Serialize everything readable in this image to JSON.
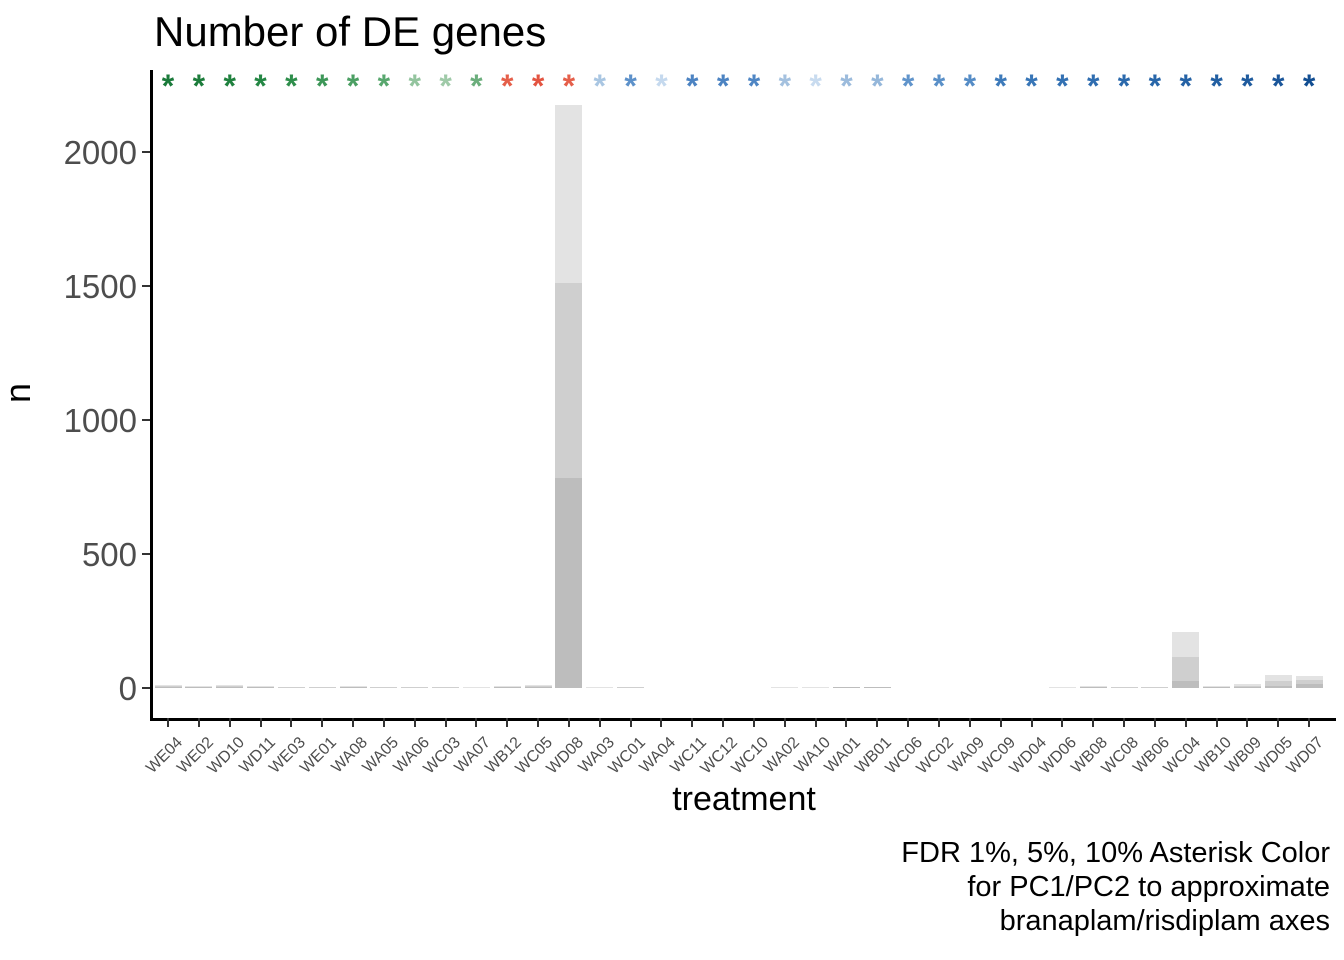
{
  "title": "Number of DE genes",
  "y_axis": {
    "label": "n"
  },
  "x_axis": {
    "label": "treatment"
  },
  "caption": {
    "lines": [
      "FDR 1%, 5%, 10% Asterisk Color",
      "for PC1/PC2 to approximate",
      "branaplam/risdiplam axes"
    ]
  },
  "colors": {
    "background": "#ffffff",
    "axis_line": "#000000",
    "tick_text": "#4d4d4d",
    "bar_fdr10": "#e3e3e3",
    "bar_fdr5": "#cfcfcf",
    "bar_fdr1": "#bdbdbd"
  },
  "chart_data": {
    "type": "bar",
    "stacking": "overlay",
    "title": "Number of DE genes",
    "xlabel": "treatment",
    "ylabel": "n",
    "ylim": [
      0,
      2280
    ],
    "yticks": [
      0,
      500,
      1000,
      1500,
      2000
    ],
    "grid": false,
    "legend_position": "none",
    "series_names": [
      "FDR 10%",
      "FDR 5%",
      "FDR 1%"
    ],
    "asterisk_glyph": "*",
    "treatments": [
      {
        "label": "WE04",
        "fdr10": 12,
        "fdr5": 8,
        "fdr1": 3,
        "asterisk_color": "#1a7a3a"
      },
      {
        "label": "WE02",
        "fdr10": 8,
        "fdr5": 5,
        "fdr1": 2,
        "asterisk_color": "#1c7c3b"
      },
      {
        "label": "WD10",
        "fdr10": 11,
        "fdr5": 7,
        "fdr1": 3,
        "asterisk_color": "#1f813e"
      },
      {
        "label": "WD11",
        "fdr10": 7,
        "fdr5": 4,
        "fdr1": 2,
        "asterisk_color": "#248744"
      },
      {
        "label": "WE03",
        "fdr10": 3,
        "fdr5": 1,
        "fdr1": 0,
        "asterisk_color": "#2e8e4b"
      },
      {
        "label": "WE01",
        "fdr10": 5,
        "fdr5": 2,
        "fdr1": 0,
        "asterisk_color": "#3d9758"
      },
      {
        "label": "WA08",
        "fdr10": 8,
        "fdr5": 4,
        "fdr1": 1,
        "asterisk_color": "#4b9f63"
      },
      {
        "label": "WA05",
        "fdr10": 4,
        "fdr5": 2,
        "fdr1": 0,
        "asterisk_color": "#58a76e"
      },
      {
        "label": "WA06",
        "fdr10": 2,
        "fdr5": 1,
        "fdr1": 0,
        "asterisk_color": "#93c49e"
      },
      {
        "label": "WC03",
        "fdr10": 2,
        "fdr5": 1,
        "fdr1": 0,
        "asterisk_color": "#9fcaa8"
      },
      {
        "label": "WA07",
        "fdr10": 1,
        "fdr5": 0,
        "fdr1": 0,
        "asterisk_color": "#6bae7c"
      },
      {
        "label": "WB12",
        "fdr10": 6,
        "fdr5": 3,
        "fdr1": 1,
        "asterisk_color": "#e55f4a"
      },
      {
        "label": "WC05",
        "fdr10": 12,
        "fdr5": 6,
        "fdr1": 2,
        "asterisk_color": "#e35441"
      },
      {
        "label": "WD08",
        "fdr10": 2175,
        "fdr5": 1510,
        "fdr1": 785,
        "asterisk_color": "#e55f4a"
      },
      {
        "label": "WA03",
        "fdr10": 1,
        "fdr5": 0,
        "fdr1": 0,
        "asterisk_color": "#a9c6e2"
      },
      {
        "label": "WC01",
        "fdr10": 3,
        "fdr5": 1,
        "fdr1": 0,
        "asterisk_color": "#5d91ca"
      },
      {
        "label": "WA04",
        "fdr10": 0,
        "fdr5": 0,
        "fdr1": 0,
        "asterisk_color": "#c5d9ee"
      },
      {
        "label": "WC11",
        "fdr10": 0,
        "fdr5": 0,
        "fdr1": 0,
        "asterisk_color": "#4c83c2"
      },
      {
        "label": "WC12",
        "fdr10": 0,
        "fdr5": 0,
        "fdr1": 0,
        "asterisk_color": "#4c83c2"
      },
      {
        "label": "WC10",
        "fdr10": 0,
        "fdr5": 0,
        "fdr1": 0,
        "asterisk_color": "#4f86c4"
      },
      {
        "label": "WA02",
        "fdr10": 1,
        "fdr5": 0,
        "fdr1": 0,
        "asterisk_color": "#a4c1df"
      },
      {
        "label": "WA10",
        "fdr10": 1,
        "fdr5": 0,
        "fdr1": 0,
        "asterisk_color": "#c8dbef"
      },
      {
        "label": "WA01",
        "fdr10": 5,
        "fdr5": 3,
        "fdr1": 1,
        "asterisk_color": "#9cbbdc"
      },
      {
        "label": "WB01",
        "fdr10": 5,
        "fdr5": 3,
        "fdr1": 1,
        "asterisk_color": "#95b7da"
      },
      {
        "label": "WC06",
        "fdr10": 0,
        "fdr5": 0,
        "fdr1": 0,
        "asterisk_color": "#6094cb"
      },
      {
        "label": "WC02",
        "fdr10": 0,
        "fdr5": 0,
        "fdr1": 0,
        "asterisk_color": "#5a90c8"
      },
      {
        "label": "WA09",
        "fdr10": 0,
        "fdr5": 0,
        "fdr1": 0,
        "asterisk_color": "#558cc6"
      },
      {
        "label": "WC09",
        "fdr10": 0,
        "fdr5": 0,
        "fdr1": 0,
        "asterisk_color": "#3d7aba"
      },
      {
        "label": "WD04",
        "fdr10": 0,
        "fdr5": 0,
        "fdr1": 0,
        "asterisk_color": "#3876b7"
      },
      {
        "label": "WD06",
        "fdr10": 1,
        "fdr5": 0,
        "fdr1": 0,
        "asterisk_color": "#3371b3"
      },
      {
        "label": "WB08",
        "fdr10": 6,
        "fdr5": 4,
        "fdr1": 1,
        "asterisk_color": "#2f6db0"
      },
      {
        "label": "WC08",
        "fdr10": 4,
        "fdr5": 2,
        "fdr1": 0,
        "asterisk_color": "#2b69ac"
      },
      {
        "label": "WB06",
        "fdr10": 4,
        "fdr5": 2,
        "fdr1": 0,
        "asterisk_color": "#2866a9"
      },
      {
        "label": "WC04",
        "fdr10": 210,
        "fdr5": 117,
        "fdr1": 26,
        "asterisk_color": "#2562a5"
      },
      {
        "label": "WB10",
        "fdr10": 8,
        "fdr5": 4,
        "fdr1": 1,
        "asterisk_color": "#225fa2"
      },
      {
        "label": "WB09",
        "fdr10": 15,
        "fdr5": 8,
        "fdr1": 3,
        "asterisk_color": "#1f5b9e"
      },
      {
        "label": "WD05",
        "fdr10": 48,
        "fdr5": 26,
        "fdr1": 9,
        "asterisk_color": "#1b569a"
      },
      {
        "label": "WD07",
        "fdr10": 45,
        "fdr5": 30,
        "fdr1": 15,
        "asterisk_color": "#124e92"
      }
    ]
  }
}
